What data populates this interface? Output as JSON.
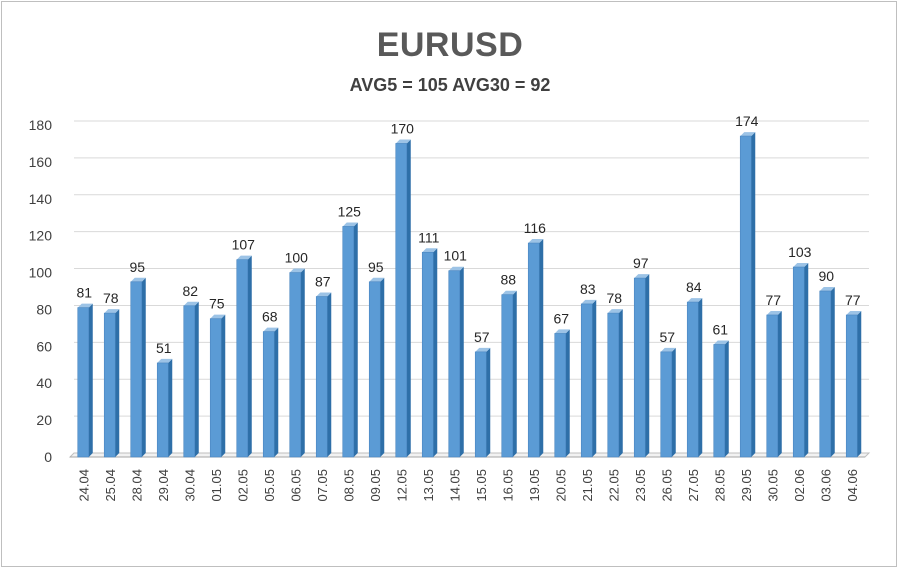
{
  "title": "EURUSD",
  "subtitle": "AVG5 = 105 AVG30 = 92",
  "chart_data": {
    "type": "bar",
    "title": "EURUSD",
    "subtitle": "AVG5 = 105 AVG30 = 92",
    "categories": [
      "24.04",
      "25.04",
      "28.04",
      "29.04",
      "30.04",
      "01.05",
      "02.05",
      "05.05",
      "06.05",
      "07.05",
      "08.05",
      "09.05",
      "12.05",
      "13.05",
      "14.05",
      "15.05",
      "16.05",
      "19.05",
      "20.05",
      "21.05",
      "22.05",
      "23.05",
      "26.05",
      "27.05",
      "28.05",
      "29.05",
      "30.05",
      "02.06",
      "03.06",
      "04.06"
    ],
    "values": [
      81,
      78,
      95,
      51,
      82,
      75,
      107,
      68,
      100,
      87,
      125,
      95,
      170,
      111,
      101,
      57,
      88,
      116,
      67,
      83,
      78,
      97,
      57,
      84,
      61,
      174,
      77,
      103,
      90,
      77
    ],
    "ylim": [
      0,
      180
    ],
    "yticks": [
      0,
      20,
      40,
      60,
      80,
      100,
      120,
      140,
      160,
      180
    ],
    "grid": true,
    "bar_color": "#5b9bd5",
    "bar_side_color": "#2e6fa8",
    "data_labels": true,
    "xlabel": "",
    "ylabel": ""
  }
}
